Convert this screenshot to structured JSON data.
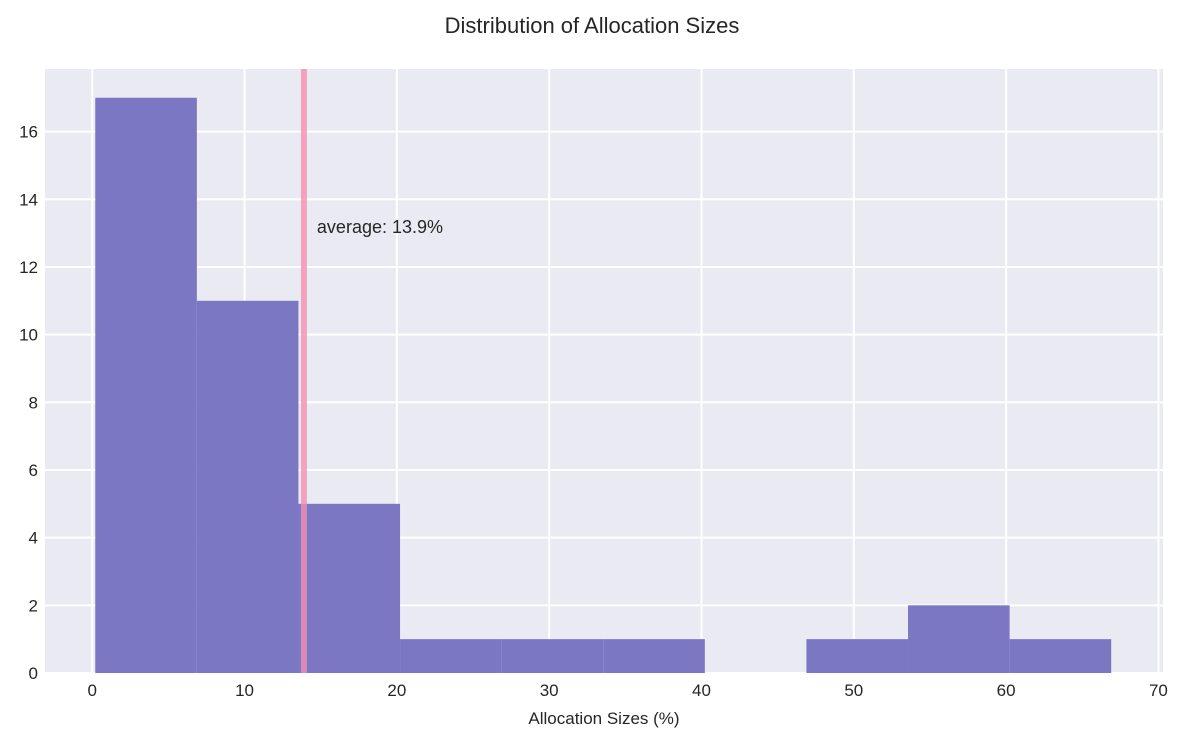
{
  "chart_data": {
    "type": "bar",
    "subtype": "histogram",
    "title": "Distribution of Allocation Sizes",
    "xlabel": "Allocation Sizes (%)",
    "ylabel": "",
    "bin_edges": [
      0.2,
      6.87,
      13.54,
      20.21,
      26.88,
      33.55,
      40.22,
      46.89,
      53.56,
      60.23,
      66.9
    ],
    "counts": [
      17,
      11,
      5,
      1,
      1,
      1,
      0,
      1,
      2,
      1
    ],
    "xlim": [
      -3.1,
      70.3
    ],
    "ylim": [
      0,
      17.85
    ],
    "xticks": [
      0,
      10,
      20,
      30,
      40,
      50,
      60,
      70
    ],
    "yticks": [
      0,
      2,
      4,
      6,
      8,
      10,
      12,
      14,
      16
    ],
    "grid": true,
    "mean_line": {
      "value": 13.9,
      "label": "average: 13.9%",
      "color": "#f48fb1"
    },
    "colors": {
      "bars": "#7b77c2",
      "background": "#eaeaf2",
      "grid": "#ffffff"
    }
  }
}
